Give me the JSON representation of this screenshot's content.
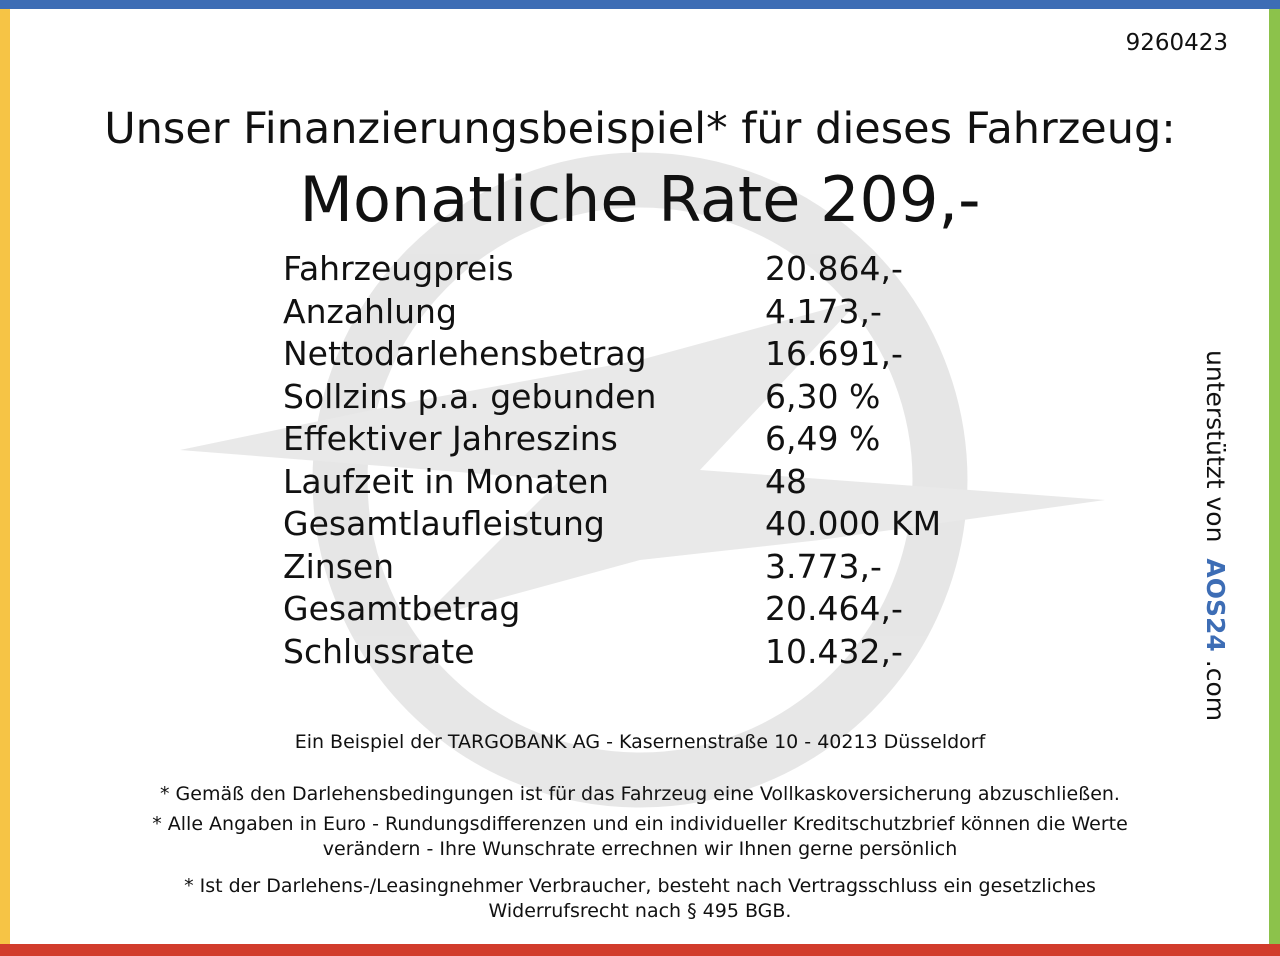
{
  "header": {
    "id": "9260423",
    "title": "Unser Finanzierungsbeispiel* für dieses Fahrzeug:",
    "rate": "Monatliche Rate 209,-"
  },
  "table": {
    "rows": [
      [
        "Fahrzeugpreis",
        "20.864,-"
      ],
      [
        "Anzahlung",
        "4.173,-"
      ],
      [
        "Nettodarlehensbetrag",
        "16.691,-"
      ],
      [
        "Sollzins p.a. gebunden",
        "6,30 %"
      ],
      [
        "Effektiver Jahreszins",
        "6,49 %"
      ],
      [
        "Laufzeit in Monaten",
        "48"
      ],
      [
        "Gesamtlaufleistung",
        "40.000 KM"
      ],
      [
        "Zinsen",
        "3.773,-"
      ],
      [
        "Gesamtbetrag",
        "20.464,-"
      ],
      [
        "Schlussrate",
        "10.432,-"
      ]
    ]
  },
  "footer": {
    "bank": "Ein Beispiel der TARGOBANK AG - Kasernenstraße 10 - 40213 Düsseldorf",
    "notes": [
      [
        "* Gemäß den Darlehensbedingungen ist für das Fahrzeug eine Vollkaskoversicherung abzuschließen."
      ],
      [
        "* Alle Angaben in Euro - Rundungsdifferenzen und ein individueller Kreditschutzbrief können die Werte",
        "verändern - Ihre Wunschrate errechnen wir Ihnen gerne persönlich"
      ],
      [
        "* Ist der Darlehens-/Leasingnehmer Verbraucher, besteht nach Vertragsschluss ein gesetzliches",
        "Widerrufsrecht nach § 495 BGB."
      ]
    ]
  },
  "sidebar": {
    "text": "unterstützt von",
    "logo": "AOS24",
    "suffix": ".com"
  }
}
